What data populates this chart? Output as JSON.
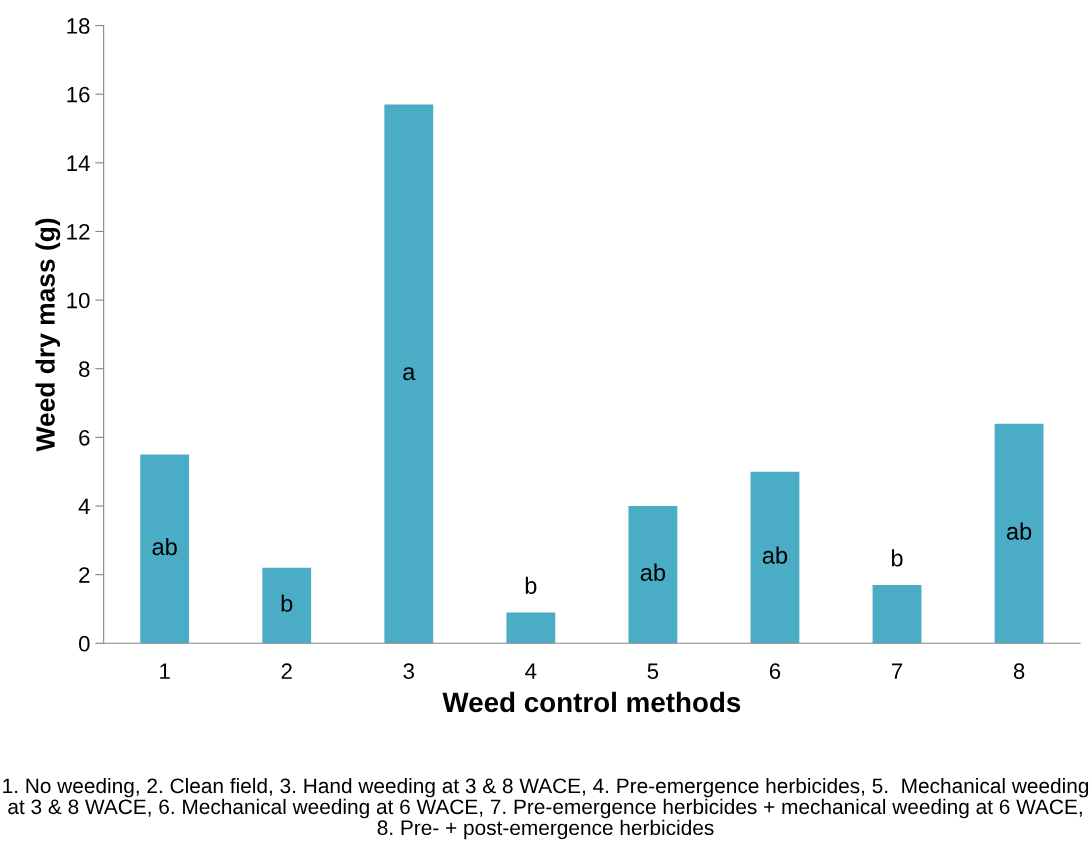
{
  "chart_data": {
    "type": "bar",
    "xlabel": "Weed control methods",
    "ylabel": "Weed dry mass (g)",
    "categories": [
      "1",
      "2",
      "3",
      "4",
      "5",
      "6",
      "7",
      "8"
    ],
    "values": [
      5.5,
      2.2,
      15.7,
      0.9,
      4.0,
      5.0,
      1.7,
      6.4
    ],
    "color": "#4bacc6",
    "ylim": [
      0,
      18
    ],
    "yticks": [
      0,
      2,
      4,
      6,
      8,
      10,
      12,
      14,
      16,
      18
    ],
    "grid": false,
    "annotations": [
      "ab",
      "b",
      "a",
      "b",
      "ab",
      "ab",
      "b",
      "ab",
      "1. No weeding, 2. Clean field, 3. Hand weeding at 3 & 8 WACE, 4. Pre-emergence herbicides, 5.  Mechanical weeding at 3 & 8 WACE, 6. Mechanical weeding at 6 WACE, 7. Pre-emergence herbicides + mechanical weeding at 6 WACE, 8. Pre- + post-emergence herbicides"
    ]
  }
}
